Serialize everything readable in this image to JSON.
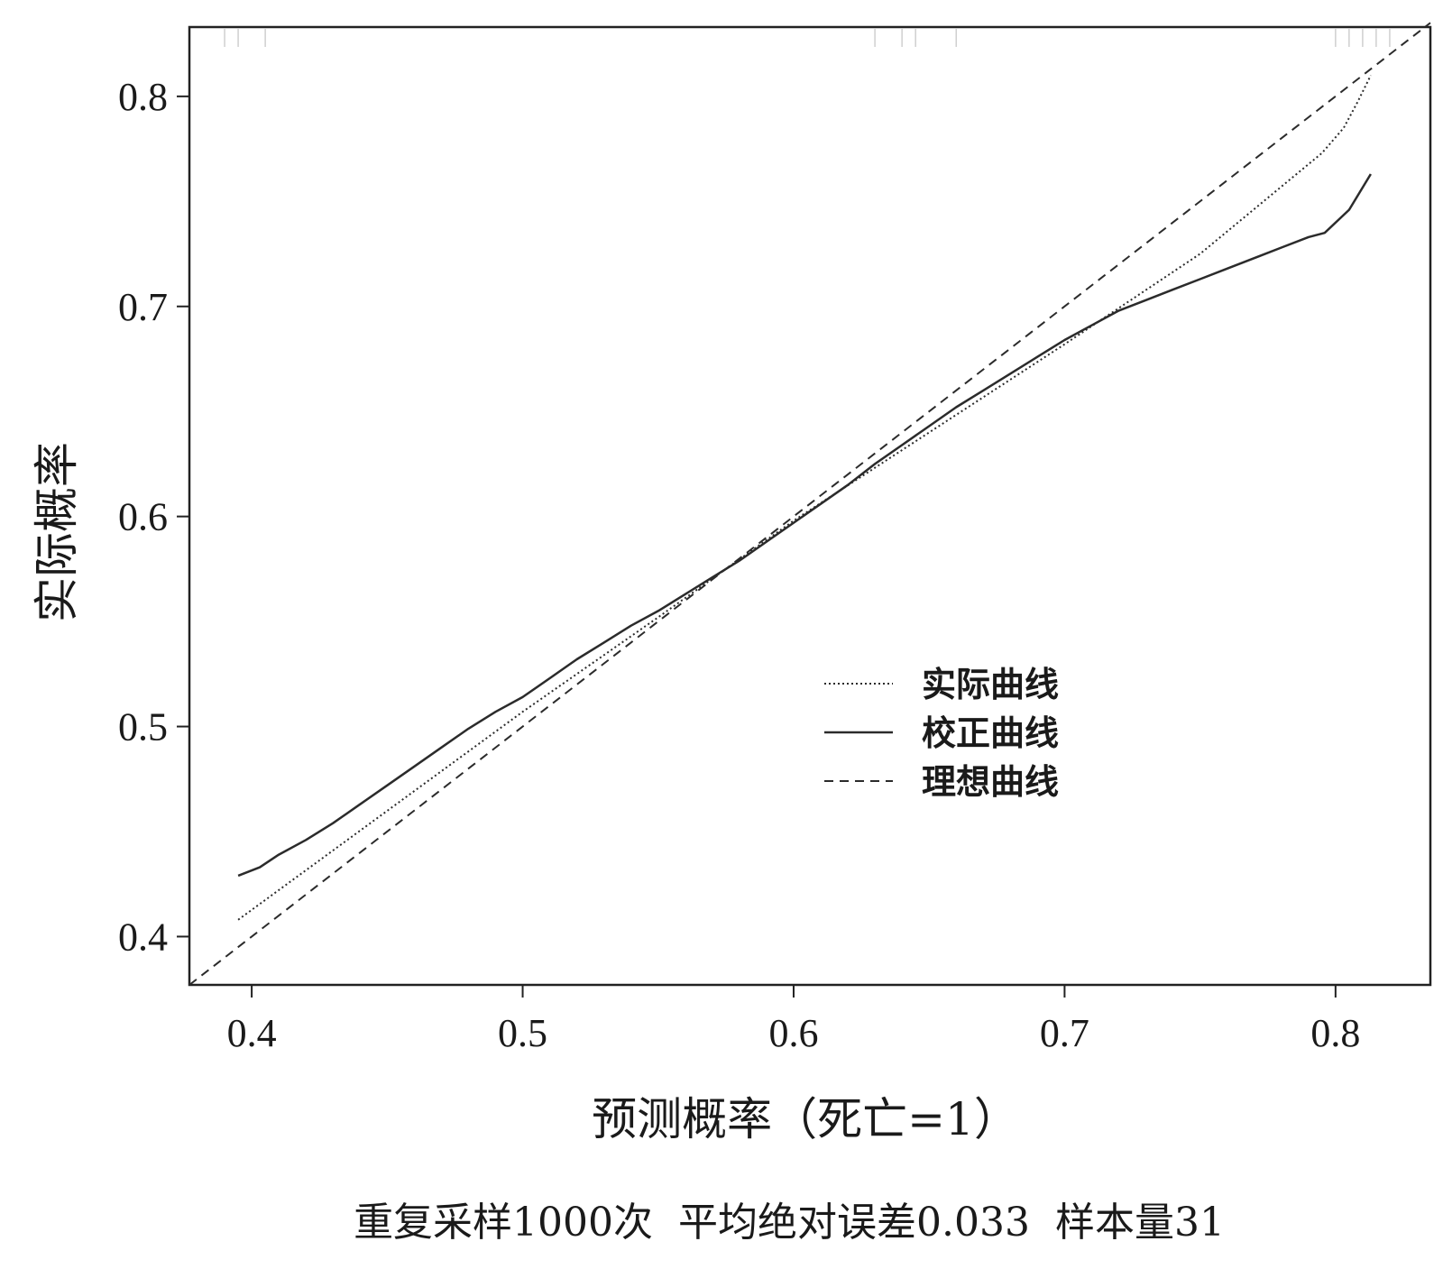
{
  "chart_data": {
    "type": "line",
    "xlabel": "预测概率（死亡=1）",
    "ylabel": "实际概率",
    "xlim": [
      0.377,
      0.835
    ],
    "ylim": [
      0.377,
      0.833
    ],
    "x_ticks": [
      "0.4",
      "0.5",
      "0.6",
      "0.7",
      "0.8"
    ],
    "y_ticks": [
      "0.4",
      "0.5",
      "0.6",
      "0.7",
      "0.8"
    ],
    "legend_position": "center-right",
    "series": [
      {
        "name": "实际曲线",
        "style": "dotted",
        "x": [
          0.395,
          0.5,
          0.55,
          0.6,
          0.65,
          0.7,
          0.75,
          0.795,
          0.803,
          0.808,
          0.813
        ],
        "y": [
          0.408,
          0.507,
          0.552,
          0.598,
          0.64,
          0.682,
          0.725,
          0.773,
          0.785,
          0.797,
          0.81
        ]
      },
      {
        "name": "校正曲线",
        "style": "solid",
        "x": [
          0.395,
          0.403,
          0.41,
          0.42,
          0.43,
          0.44,
          0.45,
          0.46,
          0.47,
          0.48,
          0.49,
          0.5,
          0.51,
          0.52,
          0.53,
          0.54,
          0.55,
          0.56,
          0.57,
          0.58,
          0.59,
          0.6,
          0.61,
          0.62,
          0.63,
          0.64,
          0.65,
          0.66,
          0.67,
          0.68,
          0.69,
          0.7,
          0.71,
          0.72,
          0.73,
          0.74,
          0.75,
          0.76,
          0.77,
          0.78,
          0.79,
          0.796,
          0.805,
          0.813
        ],
        "y": [
          0.429,
          0.433,
          0.439,
          0.446,
          0.454,
          0.463,
          0.472,
          0.481,
          0.49,
          0.499,
          0.507,
          0.514,
          0.523,
          0.532,
          0.54,
          0.548,
          0.555,
          0.563,
          0.571,
          0.579,
          0.588,
          0.597,
          0.606,
          0.615,
          0.625,
          0.634,
          0.643,
          0.652,
          0.66,
          0.668,
          0.676,
          0.684,
          0.691,
          0.698,
          0.703,
          0.708,
          0.713,
          0.718,
          0.723,
          0.728,
          0.733,
          0.735,
          0.746,
          0.763
        ]
      },
      {
        "name": "理想曲线",
        "style": "dashed",
        "x": [
          0.377,
          0.835
        ],
        "y": [
          0.377,
          0.835
        ]
      }
    ],
    "footer": "重复采样1000次  平均绝对误差0.033  样本量31"
  },
  "colors": {
    "line": "#2b2b2b",
    "frame": "#222222",
    "background": "#ffffff"
  }
}
